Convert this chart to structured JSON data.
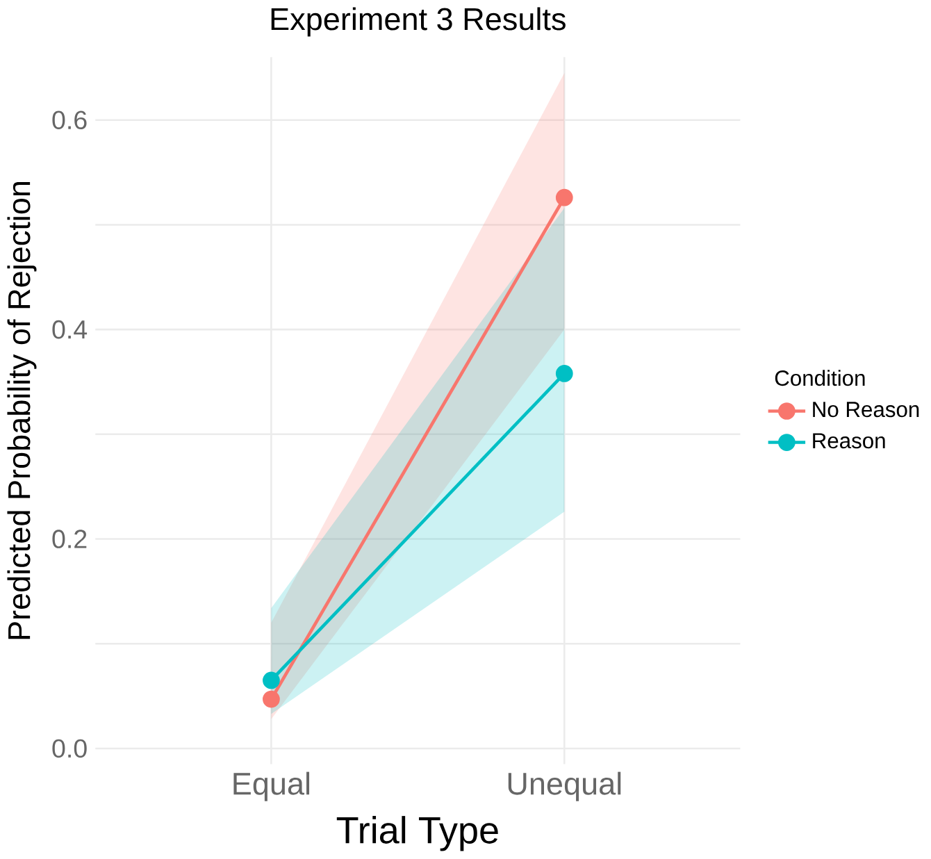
{
  "chart_data": {
    "type": "line",
    "title": "Experiment 3 Results",
    "xlabel": "Trial Type",
    "ylabel": "Predicted Probability of Rejection",
    "legend_title": "Condition",
    "categories": [
      "Equal",
      "Unequal"
    ],
    "series": [
      {
        "name": "No Reason",
        "color": "#f8766d",
        "values": [
          0.047,
          0.526
        ],
        "lower": [
          0.028,
          0.4
        ],
        "upper": [
          0.12,
          0.645
        ]
      },
      {
        "name": "Reason",
        "color": "#00bfc4",
        "values": [
          0.065,
          0.358
        ],
        "lower": [
          0.033,
          0.226
        ],
        "upper": [
          0.134,
          0.516
        ]
      }
    ],
    "ylim": [
      -0.015,
      0.66
    ],
    "yticks": [
      {
        "value": 0,
        "label": "0.0"
      },
      {
        "value": 0.1,
        "label": null
      },
      0.2,
      {
        "value": 0.3,
        "label": null
      },
      0.4,
      {
        "value": 0.5,
        "label": null
      },
      0.6
    ],
    "grid": true,
    "legend": "right",
    "marker": "circle",
    "line_style": "solid"
  }
}
